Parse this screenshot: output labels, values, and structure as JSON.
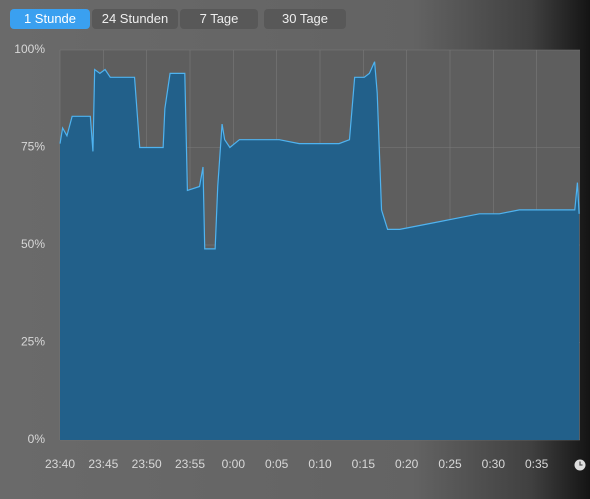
{
  "tabs": [
    "1 Stunde",
    "24 Stunden",
    "7 Tage",
    "30 Tage"
  ],
  "active_tab": 0,
  "chart_data": {
    "type": "area",
    "color": "#22608a",
    "line_color": "#4fb3f0",
    "grid": true,
    "x": [
      0,
      0.3,
      0.8,
      1.4,
      2.3,
      3.5,
      3.8,
      4.0,
      4.6,
      5.2,
      5.8,
      6.9,
      8.6,
      9.2,
      11.5,
      11.9,
      12.1,
      12.7,
      14.4,
      14.7,
      16.1,
      16.5,
      16.7,
      17.9,
      18.2,
      18.7,
      19.0,
      19.6,
      20.7,
      23.0,
      25.3,
      27.6,
      29.9,
      32.2,
      33.4,
      34.0,
      35.1,
      35.7,
      36.3,
      36.6,
      37.1,
      37.8,
      39.2,
      41.5,
      43.8,
      46.1,
      48.4,
      50.7,
      53.0,
      55.3,
      57.6,
      59.4,
      59.7,
      59.9
    ],
    "values": [
      76,
      80,
      78,
      83,
      83,
      83,
      74,
      95,
      94,
      95,
      93,
      93,
      93,
      75,
      75,
      75,
      85,
      94,
      94,
      64,
      65,
      70,
      49,
      49,
      65,
      81,
      77,
      75,
      77,
      77,
      77,
      76,
      76,
      76,
      77,
      93,
      93,
      94,
      97,
      89,
      59,
      54,
      54,
      55,
      56,
      57,
      58,
      58,
      59,
      59,
      59,
      59,
      66,
      58
    ],
    "xlim": [
      0,
      60
    ],
    "xticks": [
      {
        "value": 0,
        "label": "23:40"
      },
      {
        "value": 5,
        "label": "23:45"
      },
      {
        "value": 10,
        "label": "23:50"
      },
      {
        "value": 15,
        "label": "23:55"
      },
      {
        "value": 20,
        "label": "0:00"
      },
      {
        "value": 25,
        "label": "0:05"
      },
      {
        "value": 30,
        "label": "0:10"
      },
      {
        "value": 35,
        "label": "0:15"
      },
      {
        "value": 40,
        "label": "0:20"
      },
      {
        "value": 45,
        "label": "0:25"
      },
      {
        "value": 50,
        "label": "0:30"
      },
      {
        "value": 55,
        "label": "0:35"
      }
    ],
    "ylim": [
      0,
      100
    ],
    "yticks": [
      {
        "value": 0,
        "label": "0%"
      },
      {
        "value": 25,
        "label": "25%"
      },
      {
        "value": 50,
        "label": "50%"
      },
      {
        "value": 75,
        "label": "75%"
      },
      {
        "value": 100,
        "label": "100%"
      }
    ]
  }
}
